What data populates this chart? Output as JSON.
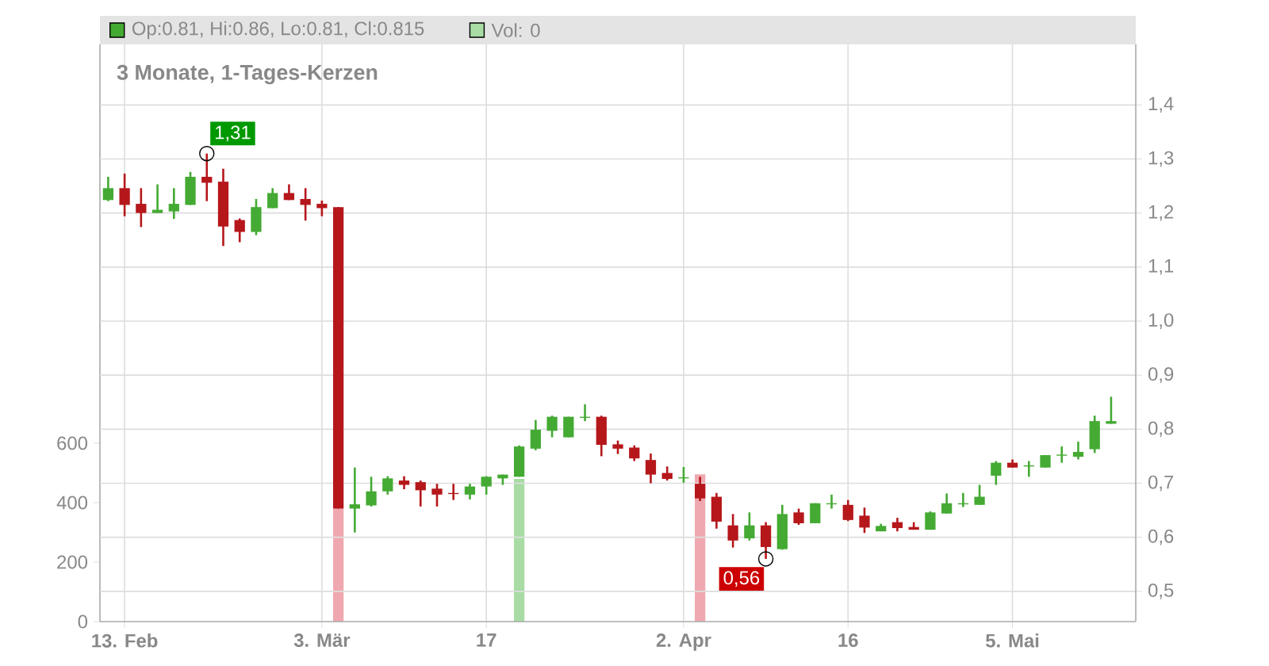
{
  "chart_data": {
    "type": "candlestick",
    "title": "3 Monate, 1-Tages-Kerzen",
    "categories": [
      null,
      "13. Feb",
      null,
      null,
      null,
      null,
      null,
      null,
      null,
      null,
      null,
      null,
      null,
      "3. Mär",
      null,
      null,
      null,
      null,
      null,
      null,
      null,
      null,
      null,
      "17",
      null,
      null,
      null,
      null,
      null,
      null,
      null,
      null,
      null,
      null,
      null,
      "2. Apr",
      null,
      null,
      null,
      null,
      null,
      null,
      null,
      null,
      null,
      "16",
      null,
      null,
      null,
      null,
      null,
      null,
      null,
      null,
      null,
      "5. Mai",
      null,
      null,
      null,
      null,
      null,
      null
    ],
    "series": [
      {
        "type": "bar",
        "name": "Vol: 0",
        "axis": "y2",
        "color": "#a8dca4",
        "values": [
          0,
          0,
          0,
          0,
          0,
          0,
          0,
          0,
          0,
          0,
          0,
          0,
          0,
          0,
          380,
          0,
          0,
          0,
          0,
          0,
          0,
          0,
          0,
          0,
          0,
          480,
          0,
          0,
          0,
          0,
          0,
          0,
          0,
          0,
          0,
          0,
          495,
          0,
          0,
          0,
          0,
          0,
          0,
          0,
          0,
          0,
          0,
          0,
          0,
          0,
          0,
          0,
          0,
          0,
          0,
          0,
          0,
          0,
          0,
          0,
          0,
          0
        ],
        "colors": [
          "#a8dca4",
          "#f0a8b0",
          "#f0a8b0",
          "#a8dca4",
          "#a8dca4",
          "#a8dca4",
          "#f0a8b0",
          "#f0a8b0",
          "#f0a8b0",
          "#a8dca4",
          "#a8dca4",
          "#f0a8b0",
          "#f0a8b0",
          "#f0a8b0",
          "#f0a8b0",
          "#a8dca4",
          "#a8dca4",
          "#a8dca4",
          "#f0a8b0",
          "#f0a8b0",
          "#f0a8b0",
          "#f0a8b0",
          "#a8dca4",
          "#a8dca4",
          "#a8dca4",
          "#a8dca4",
          "#a8dca4",
          "#a8dca4",
          "#a8dca4",
          "#a8dca4",
          "#f0a8b0",
          "#f0a8b0",
          "#f0a8b0",
          "#f0a8b0",
          "#f0a8b0",
          "#a8dca4",
          "#f0a8b0",
          "#f0a8b0",
          "#f0a8b0",
          "#a8dca4",
          "#f0a8b0",
          "#a8dca4",
          "#f0a8b0",
          "#a8dca4",
          "#a8dca4",
          "#f0a8b0",
          "#f0a8b0",
          "#a8dca4",
          "#f0a8b0",
          "#f0a8b0",
          "#a8dca4",
          "#a8dca4",
          "#a8dca4",
          "#a8dca4",
          "#a8dca4",
          "#f0a8b0",
          "#a8dca4",
          "#a8dca4",
          "#a8dca4",
          "#a8dca4",
          "#a8dca4",
          "#a8dca4"
        ]
      },
      {
        "type": "scatter",
        "marker": "circle",
        "color": "#000000",
        "values": [
          null,
          null,
          null,
          null,
          null,
          null,
          1.31,
          null,
          null,
          null,
          null,
          null,
          null,
          null,
          null,
          null,
          null,
          null,
          null,
          null,
          null,
          null,
          null,
          null,
          null,
          null,
          null,
          null,
          null,
          null,
          null,
          null,
          null,
          null,
          null,
          null,
          null,
          null,
          null,
          null,
          0.56,
          null,
          null,
          null,
          null,
          null,
          null,
          null,
          null,
          null,
          null,
          null,
          null,
          null,
          null,
          null,
          null,
          null,
          null,
          null,
          null,
          null
        ]
      },
      {
        "name": "Op:0.81, Hi:0.86, Lo:0.81, Cl:0.815",
        "color": "#44aa33",
        "colors": [
          "#44aa33",
          "#b5171b",
          "#b5171b",
          "#44aa33",
          "#44aa33",
          "#44aa33",
          "#b5171b",
          "#b5171b",
          "#b5171b",
          "#44aa33",
          "#44aa33",
          "#b5171b",
          "#b5171b",
          "#b5171b",
          "#b5171b",
          "#44aa33",
          "#44aa33",
          "#44aa33",
          "#b5171b",
          "#b5171b",
          "#b5171b",
          "#b5171b",
          "#44aa33",
          "#44aa33",
          "#44aa33",
          "#44aa33",
          "#44aa33",
          "#44aa33",
          "#44aa33",
          "#44aa33",
          "#b5171b",
          "#b5171b",
          "#b5171b",
          "#b5171b",
          "#b5171b",
          "#44aa33",
          "#b5171b",
          "#b5171b",
          "#b5171b",
          "#44aa33",
          "#b5171b",
          "#44aa33",
          "#b5171b",
          "#44aa33",
          "#44aa33",
          "#b5171b",
          "#b5171b",
          "#44aa33",
          "#b5171b",
          "#b5171b",
          "#44aa33",
          "#44aa33",
          "#44aa33",
          "#44aa33",
          "#44aa33",
          "#b5171b",
          "#44aa33",
          "#44aa33",
          "#44aa33",
          "#44aa33",
          "#44aa33",
          "#44aa33"
        ],
        "ohlc": [
          [
            1.224,
            1.267,
            1.222,
            1.246
          ],
          [
            1.246,
            1.273,
            1.194,
            1.215
          ],
          [
            1.217,
            1.246,
            1.174,
            1.2
          ],
          [
            1.2,
            1.253,
            1.2,
            1.206
          ],
          [
            1.203,
            1.246,
            1.189,
            1.217
          ],
          [
            1.215,
            1.276,
            1.215,
            1.267
          ],
          [
            1.267,
            1.31,
            1.222,
            1.256
          ],
          [
            1.258,
            1.282,
            1.139,
            1.175
          ],
          [
            1.187,
            1.19,
            1.146,
            1.165
          ],
          [
            1.165,
            1.226,
            1.159,
            1.211
          ],
          [
            1.209,
            1.246,
            1.209,
            1.237
          ],
          [
            1.237,
            1.253,
            1.224,
            1.224
          ],
          [
            1.226,
            1.246,
            1.186,
            1.215
          ],
          [
            1.217,
            1.223,
            1.194,
            1.209
          ],
          [
            1.211,
            1.211,
            0.653,
            0.653
          ],
          [
            0.653,
            0.729,
            0.609,
            0.661
          ],
          [
            0.659,
            0.712,
            0.657,
            0.685
          ],
          [
            0.685,
            0.713,
            0.679,
            0.709
          ],
          [
            0.705,
            0.713,
            0.689,
            0.697
          ],
          [
            0.702,
            0.705,
            0.657,
            0.687
          ],
          [
            0.69,
            0.699,
            0.657,
            0.679
          ],
          [
            0.682,
            0.699,
            0.669,
            0.68
          ],
          [
            0.679,
            0.699,
            0.67,
            0.694
          ],
          [
            0.694,
            0.713,
            0.679,
            0.712
          ],
          [
            0.709,
            0.716,
            0.697,
            0.716
          ],
          [
            0.712,
            0.77,
            0.712,
            0.768
          ],
          [
            0.764,
            0.817,
            0.761,
            0.799
          ],
          [
            0.797,
            0.825,
            0.785,
            0.823
          ],
          [
            0.785,
            0.823,
            0.785,
            0.823
          ],
          [
            0.821,
            0.846,
            0.815,
            0.823
          ],
          [
            0.823,
            0.825,
            0.75,
            0.771
          ],
          [
            0.772,
            0.779,
            0.754,
            0.764
          ],
          [
            0.766,
            0.77,
            0.741,
            0.746
          ],
          [
            0.743,
            0.755,
            0.7,
            0.716
          ],
          [
            0.719,
            0.731,
            0.705,
            0.708
          ],
          [
            0.709,
            0.73,
            0.701,
            0.711
          ],
          [
            0.699,
            0.712,
            0.667,
            0.672
          ],
          [
            0.675,
            0.682,
            0.616,
            0.629
          ],
          [
            0.622,
            0.643,
            0.581,
            0.594
          ],
          [
            0.598,
            0.646,
            0.594,
            0.622
          ],
          [
            0.622,
            0.628,
            0.56,
            0.582
          ],
          [
            0.578,
            0.66,
            0.577,
            0.643
          ],
          [
            0.646,
            0.653,
            0.623,
            0.626
          ],
          [
            0.626,
            0.663,
            0.626,
            0.663
          ],
          [
            0.661,
            0.679,
            0.653,
            0.663
          ],
          [
            0.66,
            0.669,
            0.63,
            0.632
          ],
          [
            0.64,
            0.655,
            0.608,
            0.618
          ],
          [
            0.611,
            0.625,
            0.611,
            0.621
          ],
          [
            0.628,
            0.636,
            0.611,
            0.617
          ],
          [
            0.619,
            0.628,
            0.614,
            0.614
          ],
          [
            0.614,
            0.648,
            0.614,
            0.646
          ],
          [
            0.644,
            0.681,
            0.644,
            0.663
          ],
          [
            0.661,
            0.682,
            0.656,
            0.663
          ],
          [
            0.66,
            0.697,
            0.66,
            0.675
          ],
          [
            0.714,
            0.741,
            0.697,
            0.738
          ],
          [
            0.738,
            0.744,
            0.729,
            0.729
          ],
          [
            0.731,
            0.741,
            0.712,
            0.733
          ],
          [
            0.729,
            0.752,
            0.729,
            0.752
          ],
          [
            0.751,
            0.768,
            0.738,
            0.753
          ],
          [
            0.749,
            0.777,
            0.744,
            0.758
          ],
          [
            0.763,
            0.825,
            0.756,
            0.815
          ],
          [
            0.81,
            0.86,
            0.81,
            0.815
          ]
        ]
      }
    ],
    "ylim": [
      0.444,
      1.512
    ],
    "yticks": [
      {
        "value": 0.5,
        "label": "0,5"
      },
      {
        "value": 0.6,
        "label": "0,6"
      },
      {
        "value": 0.7,
        "label": "0,7"
      },
      {
        "value": 0.8,
        "label": "0,8"
      },
      {
        "value": 0.9,
        "label": "0,9"
      },
      {
        "value": 1.0,
        "label": "1,0"
      },
      {
        "value": 1.1,
        "label": "1,1"
      },
      {
        "value": 1.2,
        "label": "1,2"
      },
      {
        "value": 1.3,
        "label": "1,3"
      },
      {
        "value": 1.4,
        "label": "1,4"
      }
    ],
    "y2lim": [
      0,
      1941
    ],
    "y2ticks": [
      0,
      200,
      400,
      600
    ],
    "annotations": [
      "1,31",
      "0,56"
    ],
    "grid": true,
    "legend": "top"
  }
}
